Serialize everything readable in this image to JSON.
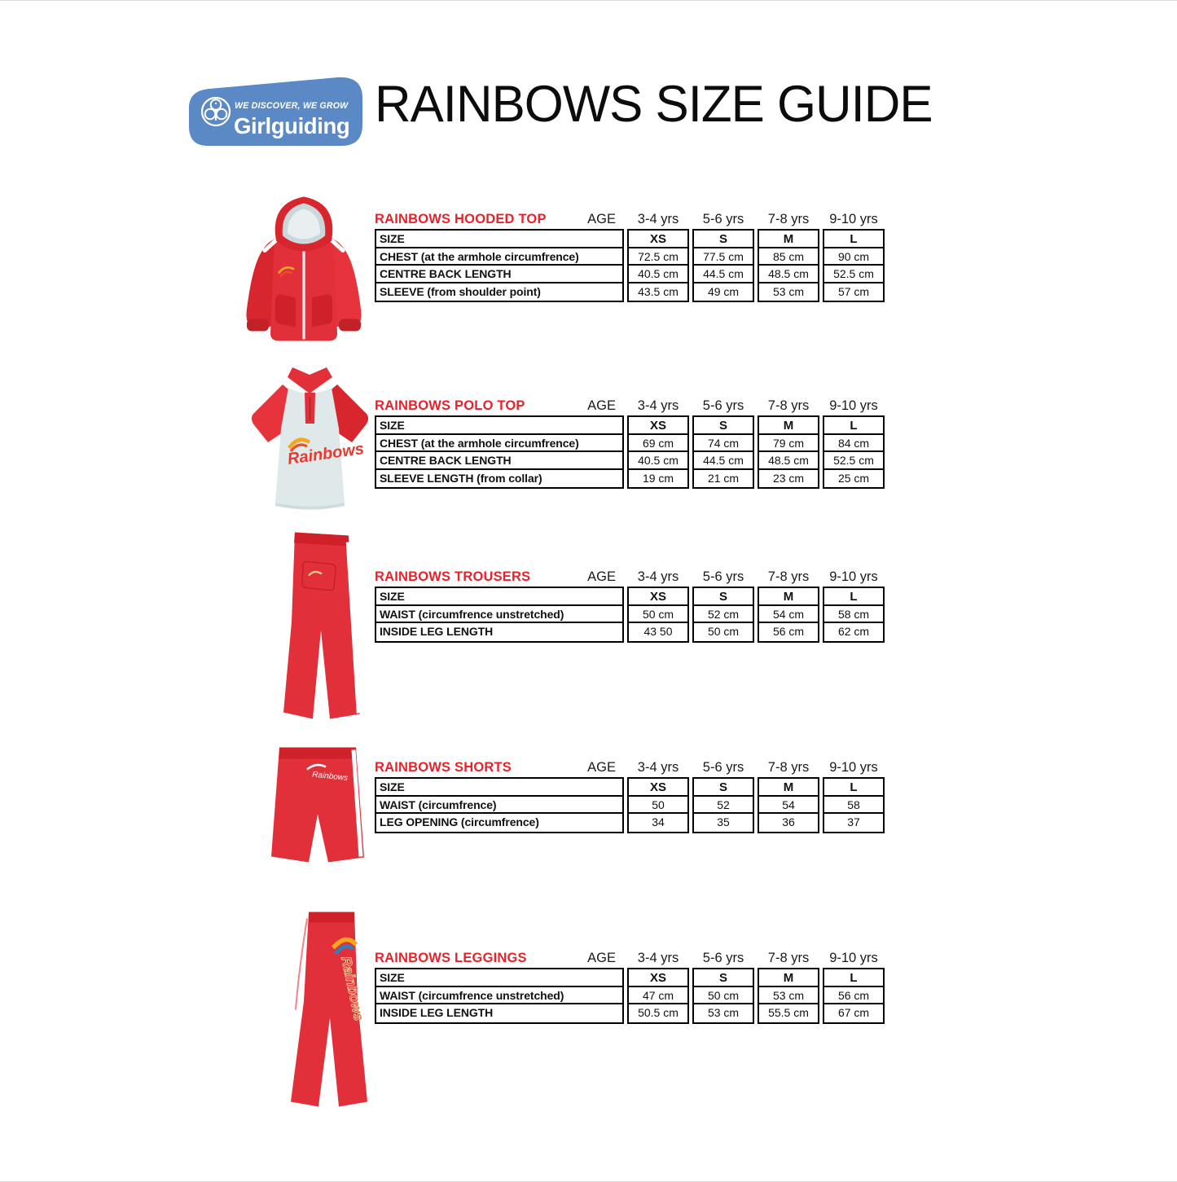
{
  "header": {
    "logo": {
      "tagline": "WE DISCOVER, WE GROW",
      "brand": "Girlguiding",
      "bg_color": "#5b89c5",
      "icon": "girlguiding-trefoil-icon"
    },
    "title": "RAINBOWS SIZE GUIDE"
  },
  "colors": {
    "accent_red": "#e8222a",
    "garment_red": "#e2303a",
    "logo_blue": "#5b89c5",
    "table_border": "#000000"
  },
  "age_label": "AGE",
  "age_columns": [
    "3-4 yrs",
    "5-6 yrs",
    "7-8 yrs",
    "9-10  yrs"
  ],
  "sections": [
    {
      "title": "RAINBOWS HOODED TOP",
      "image": "hooded-top",
      "rows": [
        {
          "label": "SIZE",
          "values": [
            "XS",
            "S",
            "M",
            "L"
          ]
        },
        {
          "label": "CHEST (at the armhole circumfrence)",
          "values": [
            "72.5 cm",
            "77.5 cm",
            "85 cm",
            "90 cm"
          ]
        },
        {
          "label": "CENTRE BACK LENGTH",
          "values": [
            "40.5 cm",
            "44.5 cm",
            "48.5 cm",
            "52.5 cm"
          ]
        },
        {
          "label": "SLEEVE (from shoulder point)",
          "values": [
            "43.5 cm",
            "49 cm",
            "53 cm",
            "57 cm"
          ]
        }
      ]
    },
    {
      "title": "RAINBOWS POLO TOP",
      "image": "polo-top",
      "rows": [
        {
          "label": "SIZE",
          "values": [
            "XS",
            "S",
            "M",
            "L"
          ]
        },
        {
          "label": "CHEST (at the armhole circumfrence)",
          "values": [
            "69 cm",
            "74 cm",
            "79 cm",
            "84 cm"
          ]
        },
        {
          "label": "CENTRE BACK LENGTH",
          "values": [
            "40.5 cm",
            "44.5 cm",
            "48.5 cm",
            "52.5 cm"
          ]
        },
        {
          "label": "SLEEVE LENGTH (from collar)",
          "values": [
            "19 cm",
            "21 cm",
            "23 cm",
            "25 cm"
          ]
        }
      ]
    },
    {
      "title": "RAINBOWS TROUSERS",
      "image": "trousers",
      "rows": [
        {
          "label": "SIZE",
          "values": [
            "XS",
            "S",
            "M",
            "L"
          ]
        },
        {
          "label": "WAIST (circumfrence unstretched)",
          "values": [
            "50 cm",
            "52 cm",
            "54 cm",
            "58 cm"
          ]
        },
        {
          "label": "INSIDE LEG LENGTH",
          "values": [
            "43 50",
            "50 cm",
            "56 cm",
            "62 cm"
          ]
        }
      ]
    },
    {
      "title": "RAINBOWS SHORTS",
      "image": "shorts",
      "rows": [
        {
          "label": "SIZE",
          "values": [
            "XS",
            "S",
            "M",
            "L"
          ]
        },
        {
          "label": "WAIST (circumfrence)",
          "values": [
            "50",
            "52",
            "54",
            "58"
          ]
        },
        {
          "label": "LEG OPENING (circumfrence)",
          "values": [
            "34",
            "35",
            "36",
            "37"
          ]
        }
      ]
    },
    {
      "title": "RAINBOWS LEGGINGS",
      "image": "leggings",
      "rows": [
        {
          "label": "SIZE",
          "values": [
            "XS",
            "S",
            "M",
            "L"
          ]
        },
        {
          "label": "WAIST (circumfrence unstretched)",
          "values": [
            "47 cm",
            "50 cm",
            "53 cm",
            "56 cm"
          ]
        },
        {
          "label": "INSIDE LEG LENGTH",
          "values": [
            "50.5 cm",
            "53 cm",
            "55.5 cm",
            "67 cm"
          ]
        }
      ]
    }
  ]
}
